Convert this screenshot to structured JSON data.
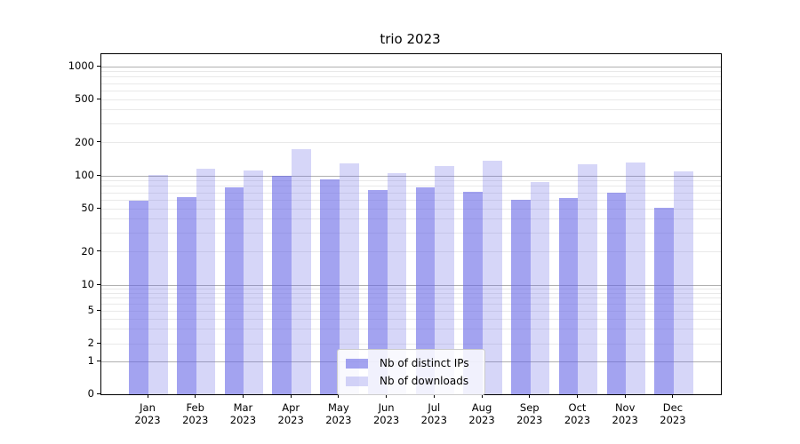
{
  "title": "trio 2023",
  "legend": {
    "items": [
      {
        "label": "Nb of distinct IPs"
      },
      {
        "label": "Nb of downloads"
      }
    ]
  },
  "colors": {
    "distinct_ips_bar": "rgba(102,102,230,0.60)",
    "downloads_bar": "rgba(102,102,230,0.27)",
    "grid_major": "#b0b0b0",
    "grid_minor": "#e9e9e9",
    "axis": "#000000"
  },
  "y_axis": {
    "tick_labels": [
      "1000",
      "500",
      "200",
      "100",
      "50",
      "20",
      "10",
      "5",
      "2",
      "1",
      "0"
    ]
  },
  "x_axis": {
    "tick_labels": [
      [
        "Jan",
        "2023"
      ],
      [
        "Feb",
        "2023"
      ],
      [
        "Mar",
        "2023"
      ],
      [
        "Apr",
        "2023"
      ],
      [
        "May",
        "2023"
      ],
      [
        "Jun",
        "2023"
      ],
      [
        "Jul",
        "2023"
      ],
      [
        "Aug",
        "2023"
      ],
      [
        "Sep",
        "2023"
      ],
      [
        "Oct",
        "2023"
      ],
      [
        "Nov",
        "2023"
      ],
      [
        "Dec",
        "2023"
      ]
    ]
  },
  "chart_data": {
    "type": "bar",
    "title": "trio 2023",
    "xlabel": "",
    "ylabel": "",
    "yscale": "symlog",
    "ylim": [
      0,
      1285
    ],
    "yticks": [
      0,
      1,
      2,
      5,
      10,
      20,
      50,
      100,
      200,
      500,
      1000
    ],
    "grid": "horizontal",
    "legend_position": "lower center",
    "categories": [
      "Jan 2023",
      "Feb 2023",
      "Mar 2023",
      "Apr 2023",
      "May 2023",
      "Jun 2023",
      "Jul 2023",
      "Aug 2023",
      "Sep 2023",
      "Oct 2023",
      "Nov 2023",
      "Dec 2023"
    ],
    "series": [
      {
        "name": "Nb of distinct IPs",
        "values": [
          59,
          64,
          79,
          100,
          92,
          74,
          79,
          72,
          60,
          63,
          70,
          51
        ]
      },
      {
        "name": "Nb of downloads",
        "values": [
          101,
          116,
          111,
          175,
          131,
          105,
          124,
          137,
          88,
          128,
          132,
          110
        ]
      }
    ]
  }
}
